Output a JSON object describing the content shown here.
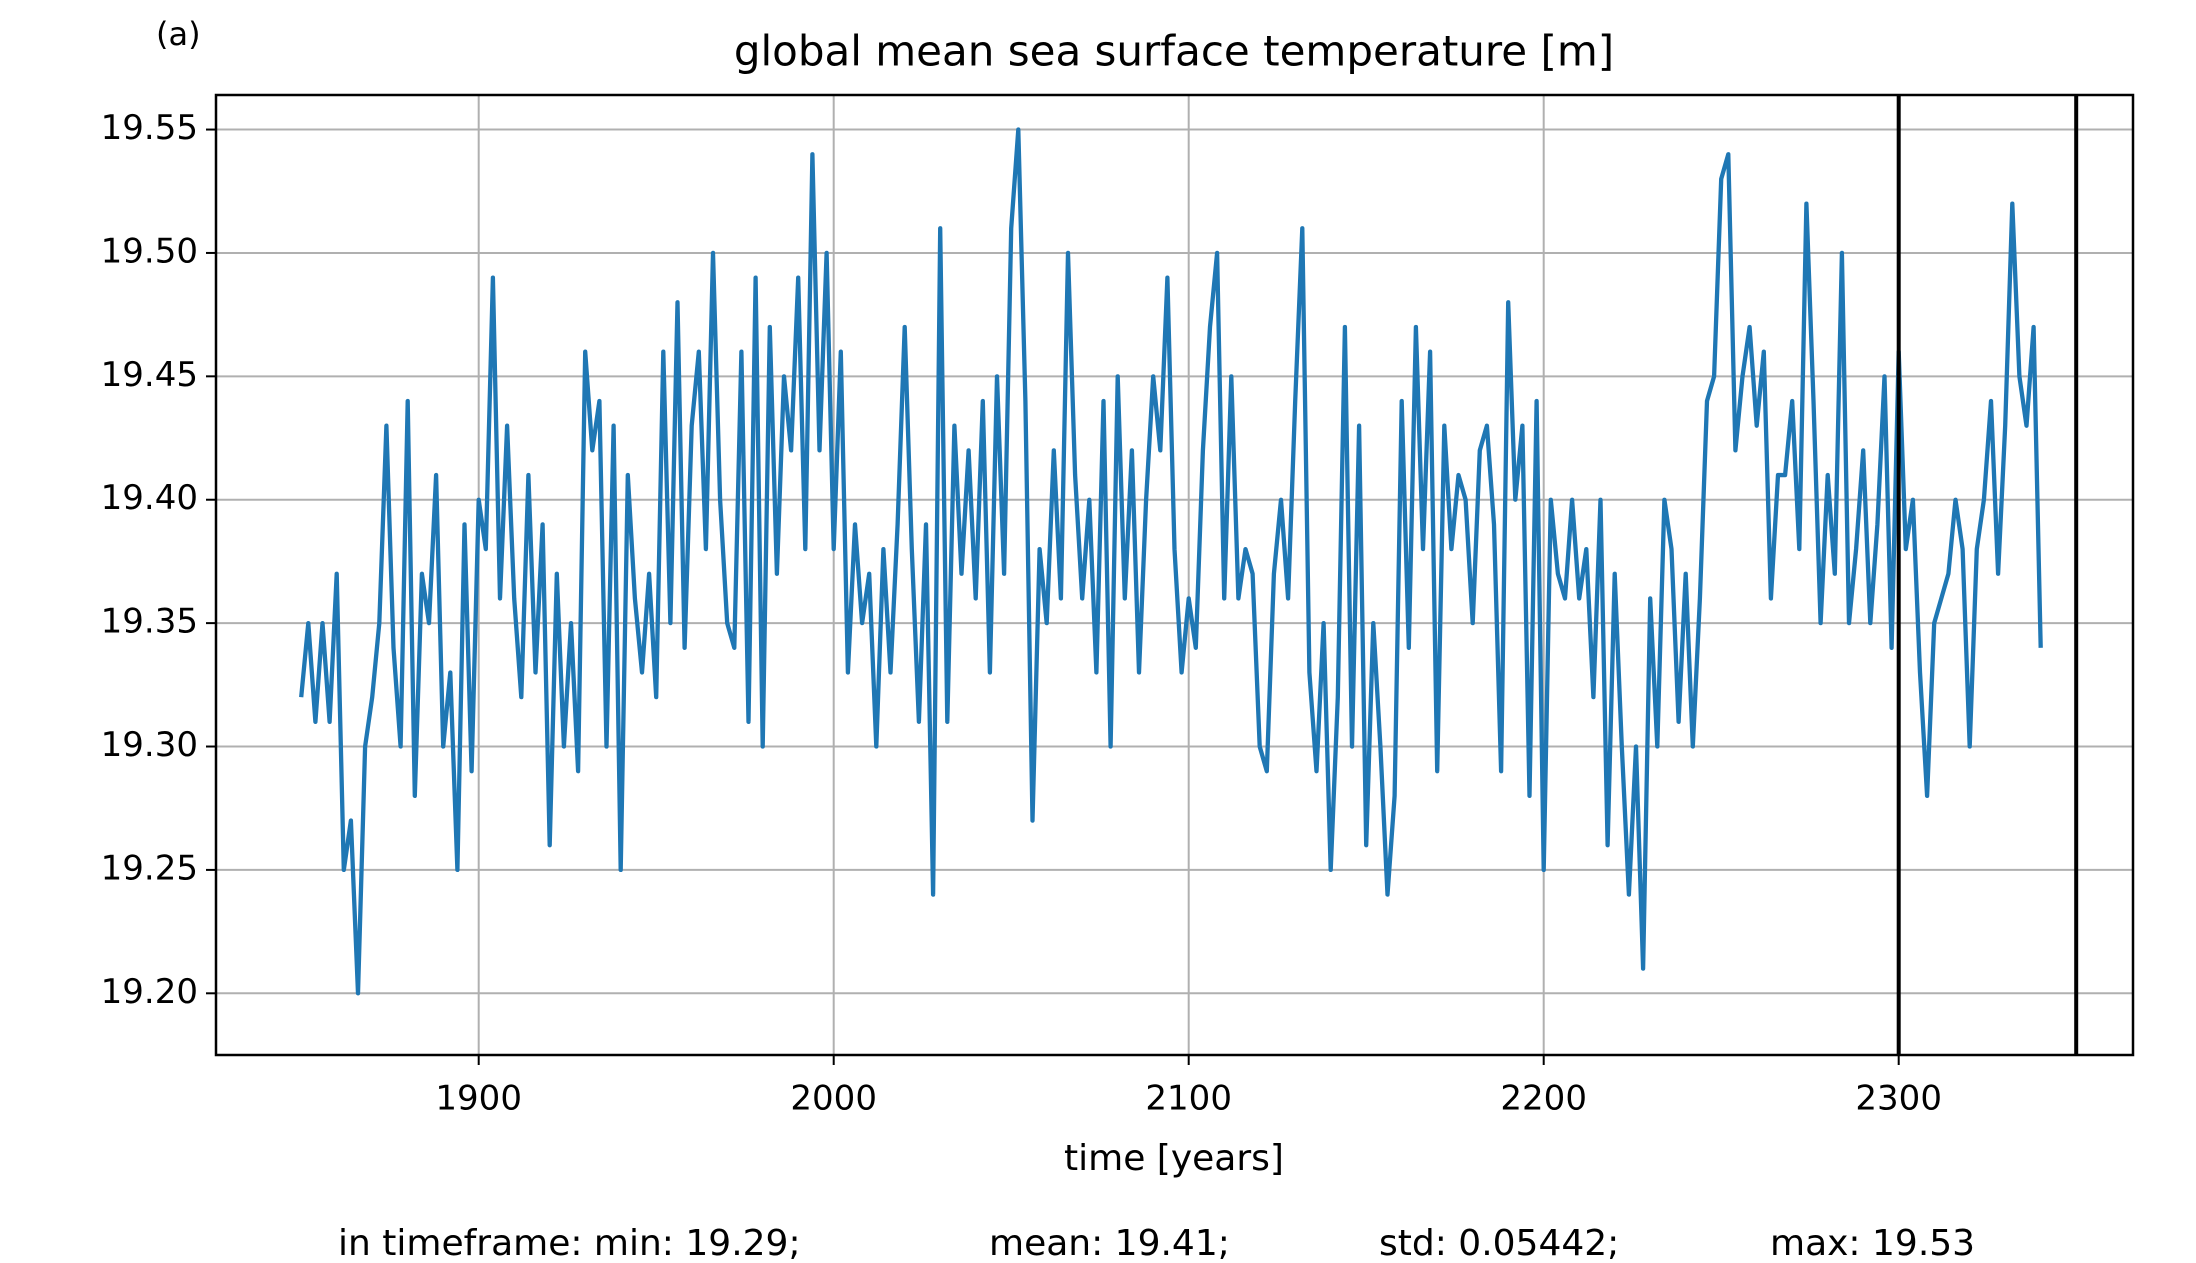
{
  "chart_data": {
    "type": "line",
    "panel_label": "(a)",
    "title": "global mean sea surface temperature [m]",
    "x_label": "time [years]",
    "footer": [
      "in timeframe: min: 19.29;",
      "mean: 19.41;",
      "std: 0.05442;",
      "max: 19.53"
    ],
    "xlim": [
      1826,
      2366
    ],
    "ylim": [
      19.175,
      19.564
    ],
    "xticks": [
      1900,
      2000,
      2100,
      2200,
      2300
    ],
    "yticks": [
      {
        "value": 19.2,
        "label": "19.20"
      },
      19.25,
      {
        "value": 19.3,
        "label": "19.30"
      },
      19.35,
      {
        "value": 19.4,
        "label": "19.40"
      },
      19.45,
      {
        "value": 19.5,
        "label": "19.50"
      },
      19.55
    ],
    "grid": true,
    "vlines": [
      2300,
      2350
    ],
    "vline_color": "#000000",
    "x": [
      1850,
      1852,
      1854,
      1856,
      1858,
      1860,
      1862,
      1864,
      1866,
      1868,
      1870,
      1872,
      1874,
      1876,
      1878,
      1880,
      1882,
      1884,
      1886,
      1888,
      1890,
      1892,
      1894,
      1896,
      1898,
      1900,
      1902,
      1904,
      1906,
      1908,
      1910,
      1912,
      1914,
      1916,
      1918,
      1920,
      1922,
      1924,
      1926,
      1928,
      1930,
      1932,
      1934,
      1936,
      1938,
      1940,
      1942,
      1944,
      1946,
      1948,
      1950,
      1952,
      1954,
      1956,
      1958,
      1960,
      1962,
      1964,
      1966,
      1968,
      1970,
      1972,
      1974,
      1976,
      1978,
      1980,
      1982,
      1984,
      1986,
      1988,
      1990,
      1992,
      1994,
      1996,
      1998,
      2000,
      2002,
      2004,
      2006,
      2008,
      2010,
      2012,
      2014,
      2016,
      2018,
      2020,
      2022,
      2024,
      2026,
      2028,
      2030,
      2032,
      2034,
      2036,
      2038,
      2040,
      2042,
      2044,
      2046,
      2048,
      2050,
      2052,
      2054,
      2056,
      2058,
      2060,
      2062,
      2064,
      2066,
      2068,
      2070,
      2072,
      2074,
      2076,
      2078,
      2080,
      2082,
      2084,
      2086,
      2088,
      2090,
      2092,
      2094,
      2096,
      2098,
      2100,
      2102,
      2104,
      2106,
      2108,
      2110,
      2112,
      2114,
      2116,
      2118,
      2120,
      2122,
      2124,
      2126,
      2128,
      2130,
      2132,
      2134,
      2136,
      2138,
      2140,
      2142,
      2144,
      2146,
      2148,
      2150,
      2152,
      2154,
      2156,
      2158,
      2160,
      2162,
      2164,
      2166,
      2168,
      2170,
      2172,
      2174,
      2176,
      2178,
      2180,
      2182,
      2184,
      2186,
      2188,
      2190,
      2192,
      2194,
      2196,
      2198,
      2200,
      2202,
      2204,
      2206,
      2208,
      2210,
      2212,
      2214,
      2216,
      2218,
      2220,
      2222,
      2224,
      2226,
      2228,
      2230,
      2232,
      2234,
      2236,
      2238,
      2240,
      2242,
      2244,
      2246,
      2248,
      2250,
      2252,
      2254,
      2256,
      2258,
      2260,
      2262,
      2264,
      2266,
      2268,
      2270,
      2272,
      2274,
      2276,
      2278,
      2280,
      2282,
      2284,
      2286,
      2288,
      2290,
      2292,
      2294,
      2296,
      2298,
      2300,
      2302,
      2304,
      2306,
      2308,
      2310,
      2312,
      2314,
      2316,
      2318,
      2320,
      2322,
      2324,
      2326,
      2328,
      2330,
      2332,
      2334,
      2336,
      2338,
      2340
    ],
    "series": [
      {
        "color": "#1f77b4",
        "values": [
          19.32,
          19.35,
          19.31,
          19.35,
          19.31,
          19.37,
          19.25,
          19.27,
          19.2,
          19.3,
          19.32,
          19.35,
          19.43,
          19.34,
          19.3,
          19.44,
          19.28,
          19.37,
          19.35,
          19.41,
          19.3,
          19.33,
          19.25,
          19.39,
          19.29,
          19.4,
          19.38,
          19.49,
          19.36,
          19.43,
          19.36,
          19.32,
          19.41,
          19.33,
          19.39,
          19.26,
          19.37,
          19.3,
          19.35,
          19.29,
          19.46,
          19.42,
          19.44,
          19.3,
          19.43,
          19.25,
          19.41,
          19.36,
          19.33,
          19.37,
          19.32,
          19.46,
          19.35,
          19.48,
          19.34,
          19.43,
          19.46,
          19.38,
          19.5,
          19.4,
          19.35,
          19.34,
          19.46,
          19.31,
          19.49,
          19.3,
          19.47,
          19.37,
          19.45,
          19.42,
          19.49,
          19.38,
          19.54,
          19.42,
          19.5,
          19.38,
          19.46,
          19.33,
          19.39,
          19.35,
          19.37,
          19.3,
          19.38,
          19.33,
          19.39,
          19.47,
          19.38,
          19.31,
          19.39,
          19.24,
          19.51,
          19.31,
          19.43,
          19.37,
          19.42,
          19.36,
          19.44,
          19.33,
          19.45,
          19.37,
          19.51,
          19.55,
          19.44,
          19.27,
          19.38,
          19.35,
          19.42,
          19.36,
          19.5,
          19.41,
          19.36,
          19.4,
          19.33,
          19.44,
          19.3,
          19.45,
          19.36,
          19.42,
          19.33,
          19.4,
          19.45,
          19.42,
          19.49,
          19.38,
          19.33,
          19.36,
          19.34,
          19.42,
          19.47,
          19.5,
          19.36,
          19.45,
          19.36,
          19.38,
          19.37,
          19.3,
          19.29,
          19.37,
          19.4,
          19.36,
          19.44,
          19.51,
          19.33,
          19.29,
          19.35,
          19.25,
          19.32,
          19.47,
          19.3,
          19.43,
          19.26,
          19.35,
          19.3,
          19.24,
          19.28,
          19.44,
          19.34,
          19.47,
          19.38,
          19.46,
          19.29,
          19.43,
          19.38,
          19.41,
          19.4,
          19.35,
          19.42,
          19.43,
          19.39,
          19.29,
          19.48,
          19.4,
          19.43,
          19.28,
          19.44,
          19.25,
          19.4,
          19.37,
          19.36,
          19.4,
          19.36,
          19.38,
          19.32,
          19.4,
          19.26,
          19.37,
          19.3,
          19.24,
          19.3,
          19.21,
          19.36,
          19.3,
          19.4,
          19.38,
          19.31,
          19.37,
          19.3,
          19.36,
          19.44,
          19.45,
          19.53,
          19.54,
          19.42,
          19.45,
          19.47,
          19.43,
          19.46,
          19.36,
          19.41,
          19.41,
          19.44,
          19.38,
          19.52,
          19.44,
          19.35,
          19.41,
          19.37,
          19.5,
          19.35,
          19.38,
          19.42,
          19.35,
          19.39,
          19.45,
          19.34,
          19.46,
          19.38,
          19.4,
          19.33,
          19.28,
          19.35,
          19.36,
          19.37,
          19.4,
          19.38,
          19.3,
          19.38,
          19.4,
          19.44,
          19.37,
          19.43,
          19.52,
          19.45,
          19.43,
          19.47,
          19.34
        ]
      }
    ]
  }
}
